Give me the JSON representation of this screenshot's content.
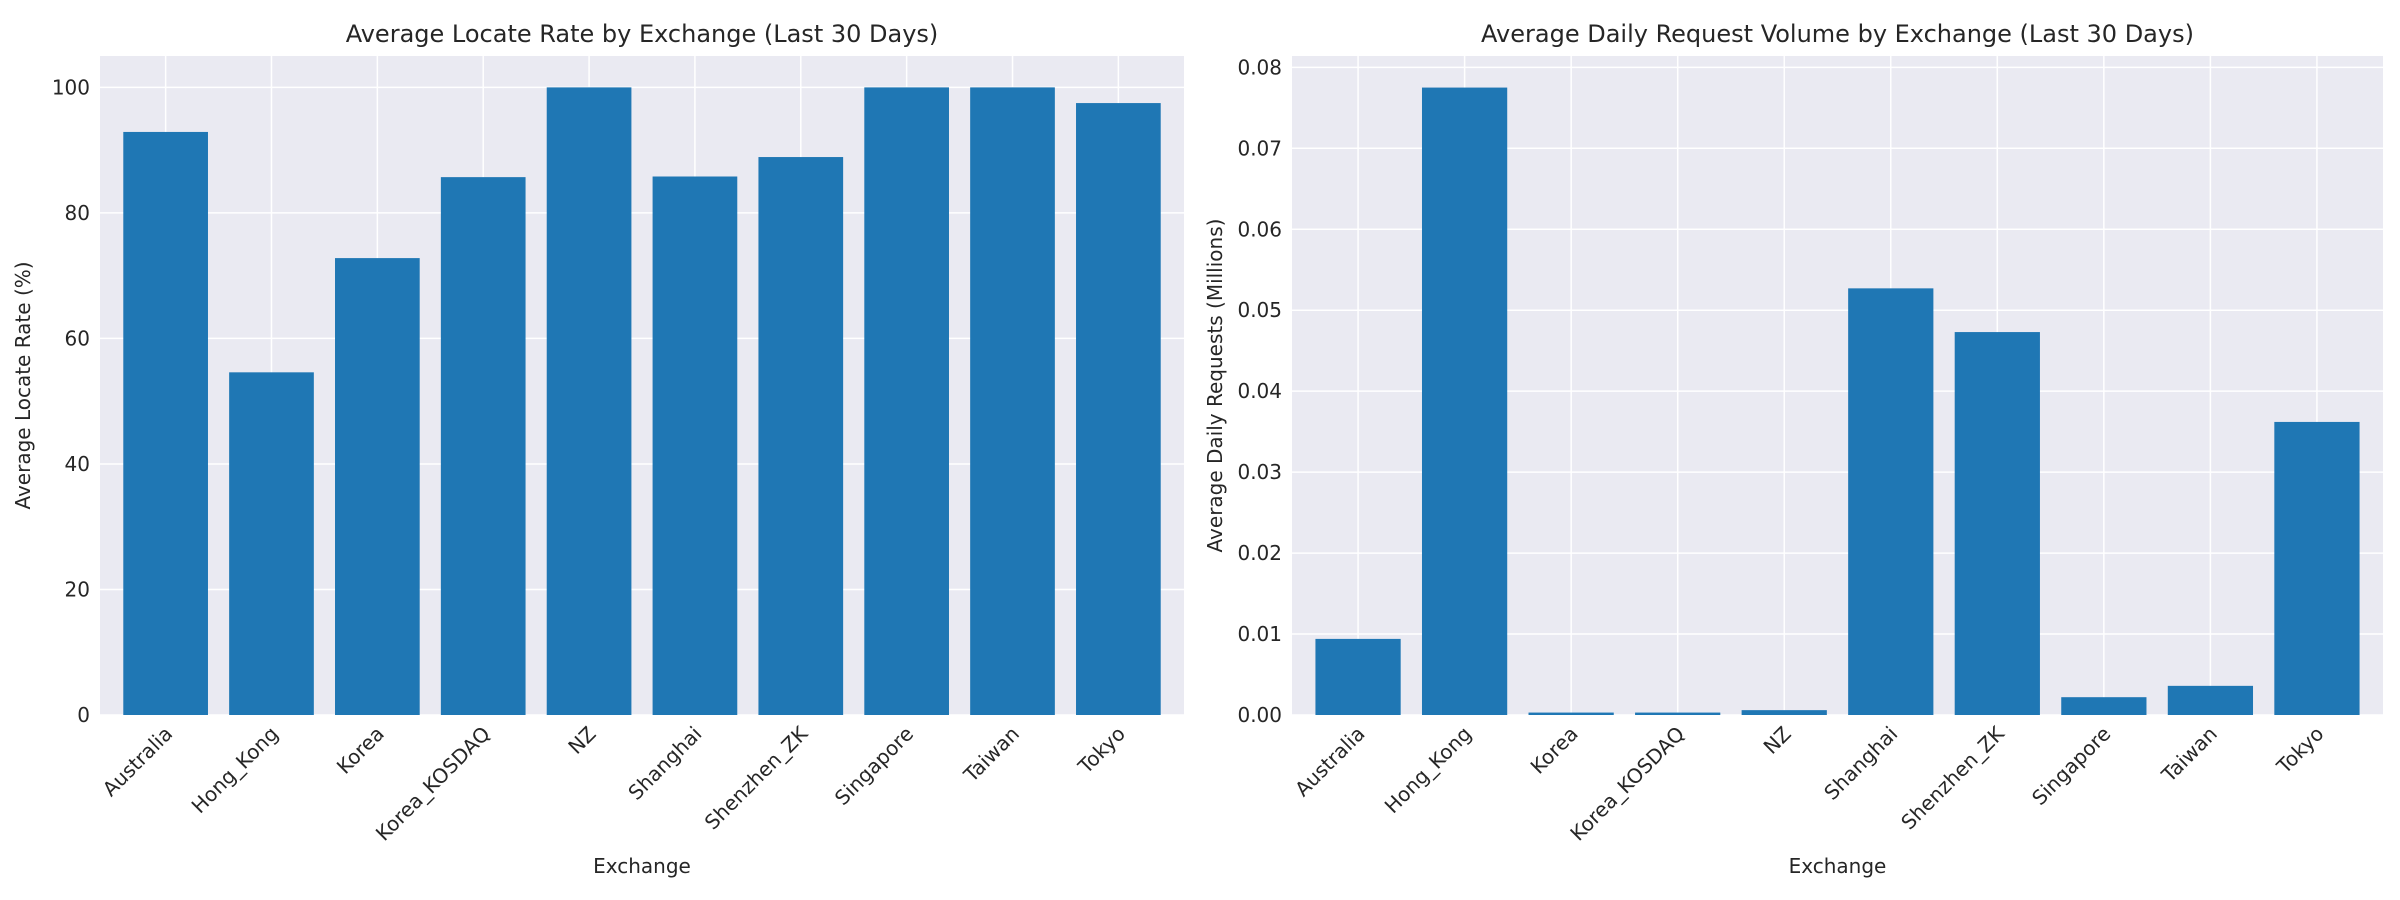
{
  "chart_data": [
    {
      "type": "bar",
      "title": "Average Locate Rate by Exchange (Last 30 Days)",
      "xlabel": "Exchange",
      "ylabel": "Average Locate Rate (%)",
      "categories": [
        "Australia",
        "Hong_Kong",
        "Korea",
        "Korea_KOSDAQ",
        "NZ",
        "Shanghai",
        "Shenzhen_ZK",
        "Singapore",
        "Taiwan",
        "Tokyo"
      ],
      "values": [
        92.9,
        54.6,
        72.8,
        85.7,
        100.0,
        85.8,
        88.9,
        100.0,
        100.0,
        97.5
      ],
      "ylim": [
        0,
        105
      ],
      "yticks": [
        0,
        20,
        40,
        60,
        80,
        100
      ],
      "ytick_labels": [
        "0",
        "20",
        "40",
        "60",
        "80",
        "100"
      ],
      "grid": true,
      "bar_color": "#1f77b4"
    },
    {
      "type": "bar",
      "title": "Average Daily Request Volume by Exchange (Last 30 Days)",
      "xlabel": "Exchange",
      "ylabel": "Average Daily Requests (Millions)",
      "categories": [
        "Australia",
        "Hong_Kong",
        "Korea",
        "Korea_KOSDAQ",
        "NZ",
        "Shanghai",
        "Shenzhen_ZK",
        "Singapore",
        "Taiwan",
        "Tokyo"
      ],
      "values": [
        0.0094,
        0.0775,
        0.0003,
        0.0003,
        0.0006,
        0.0527,
        0.0473,
        0.0022,
        0.0036,
        0.0362
      ],
      "ylim": [
        0,
        0.0814
      ],
      "yticks": [
        0,
        0.01,
        0.02,
        0.03,
        0.04,
        0.05,
        0.06,
        0.07,
        0.08
      ],
      "ytick_labels": [
        "0.00",
        "0.01",
        "0.02",
        "0.03",
        "0.04",
        "0.05",
        "0.06",
        "0.07",
        "0.08"
      ],
      "grid": true,
      "bar_color": "#1f77b4"
    }
  ],
  "colors": {
    "plot_background": "#eaeaf2",
    "grid": "#ffffff",
    "bar": "#1f77b4",
    "text": "#262626"
  }
}
